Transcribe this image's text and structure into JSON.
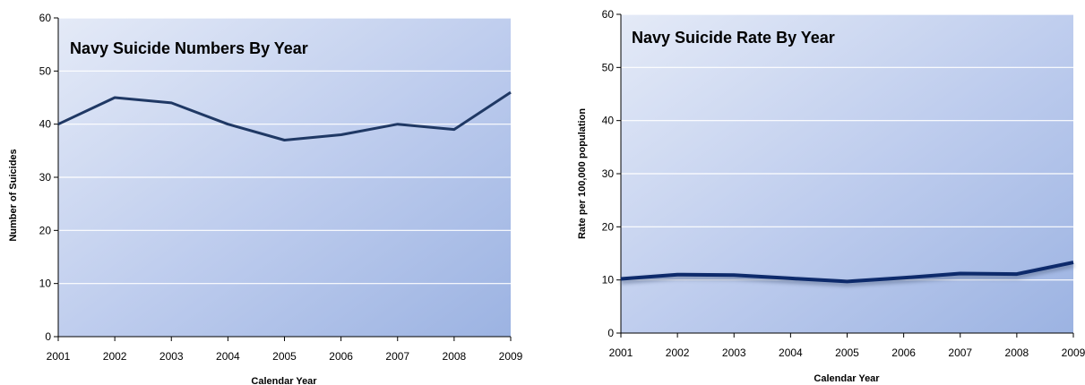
{
  "chart_data": [
    {
      "type": "line",
      "title": "Navy Suicide Numbers By Year",
      "xlabel": "Calendar Year",
      "ylabel": "Number of Suicides",
      "categories": [
        "2001",
        "2002",
        "2003",
        "2004",
        "2005",
        "2006",
        "2007",
        "2008",
        "2009"
      ],
      "values": [
        40,
        45,
        44,
        40,
        37,
        38,
        40,
        39,
        46
      ],
      "ylim": [
        0,
        60
      ],
      "yticks": [
        0,
        10,
        20,
        30,
        40,
        50,
        60
      ],
      "grid": true,
      "line_color": "#1f3864"
    },
    {
      "type": "line",
      "title": "Navy Suicide Rate By Year",
      "xlabel": "Calendar Year",
      "ylabel": "Rate per 100,000 population",
      "categories": [
        "2001",
        "2002",
        "2003",
        "2004",
        "2005",
        "2006",
        "2007",
        "2008",
        "2009"
      ],
      "values": [
        10.2,
        11.0,
        10.9,
        10.3,
        9.7,
        10.4,
        11.2,
        11.1,
        13.3
      ],
      "ylim": [
        0,
        60
      ],
      "yticks": [
        0,
        10,
        20,
        30,
        40,
        50,
        60
      ],
      "grid": true,
      "line_color": "#0d2a6b"
    }
  ]
}
